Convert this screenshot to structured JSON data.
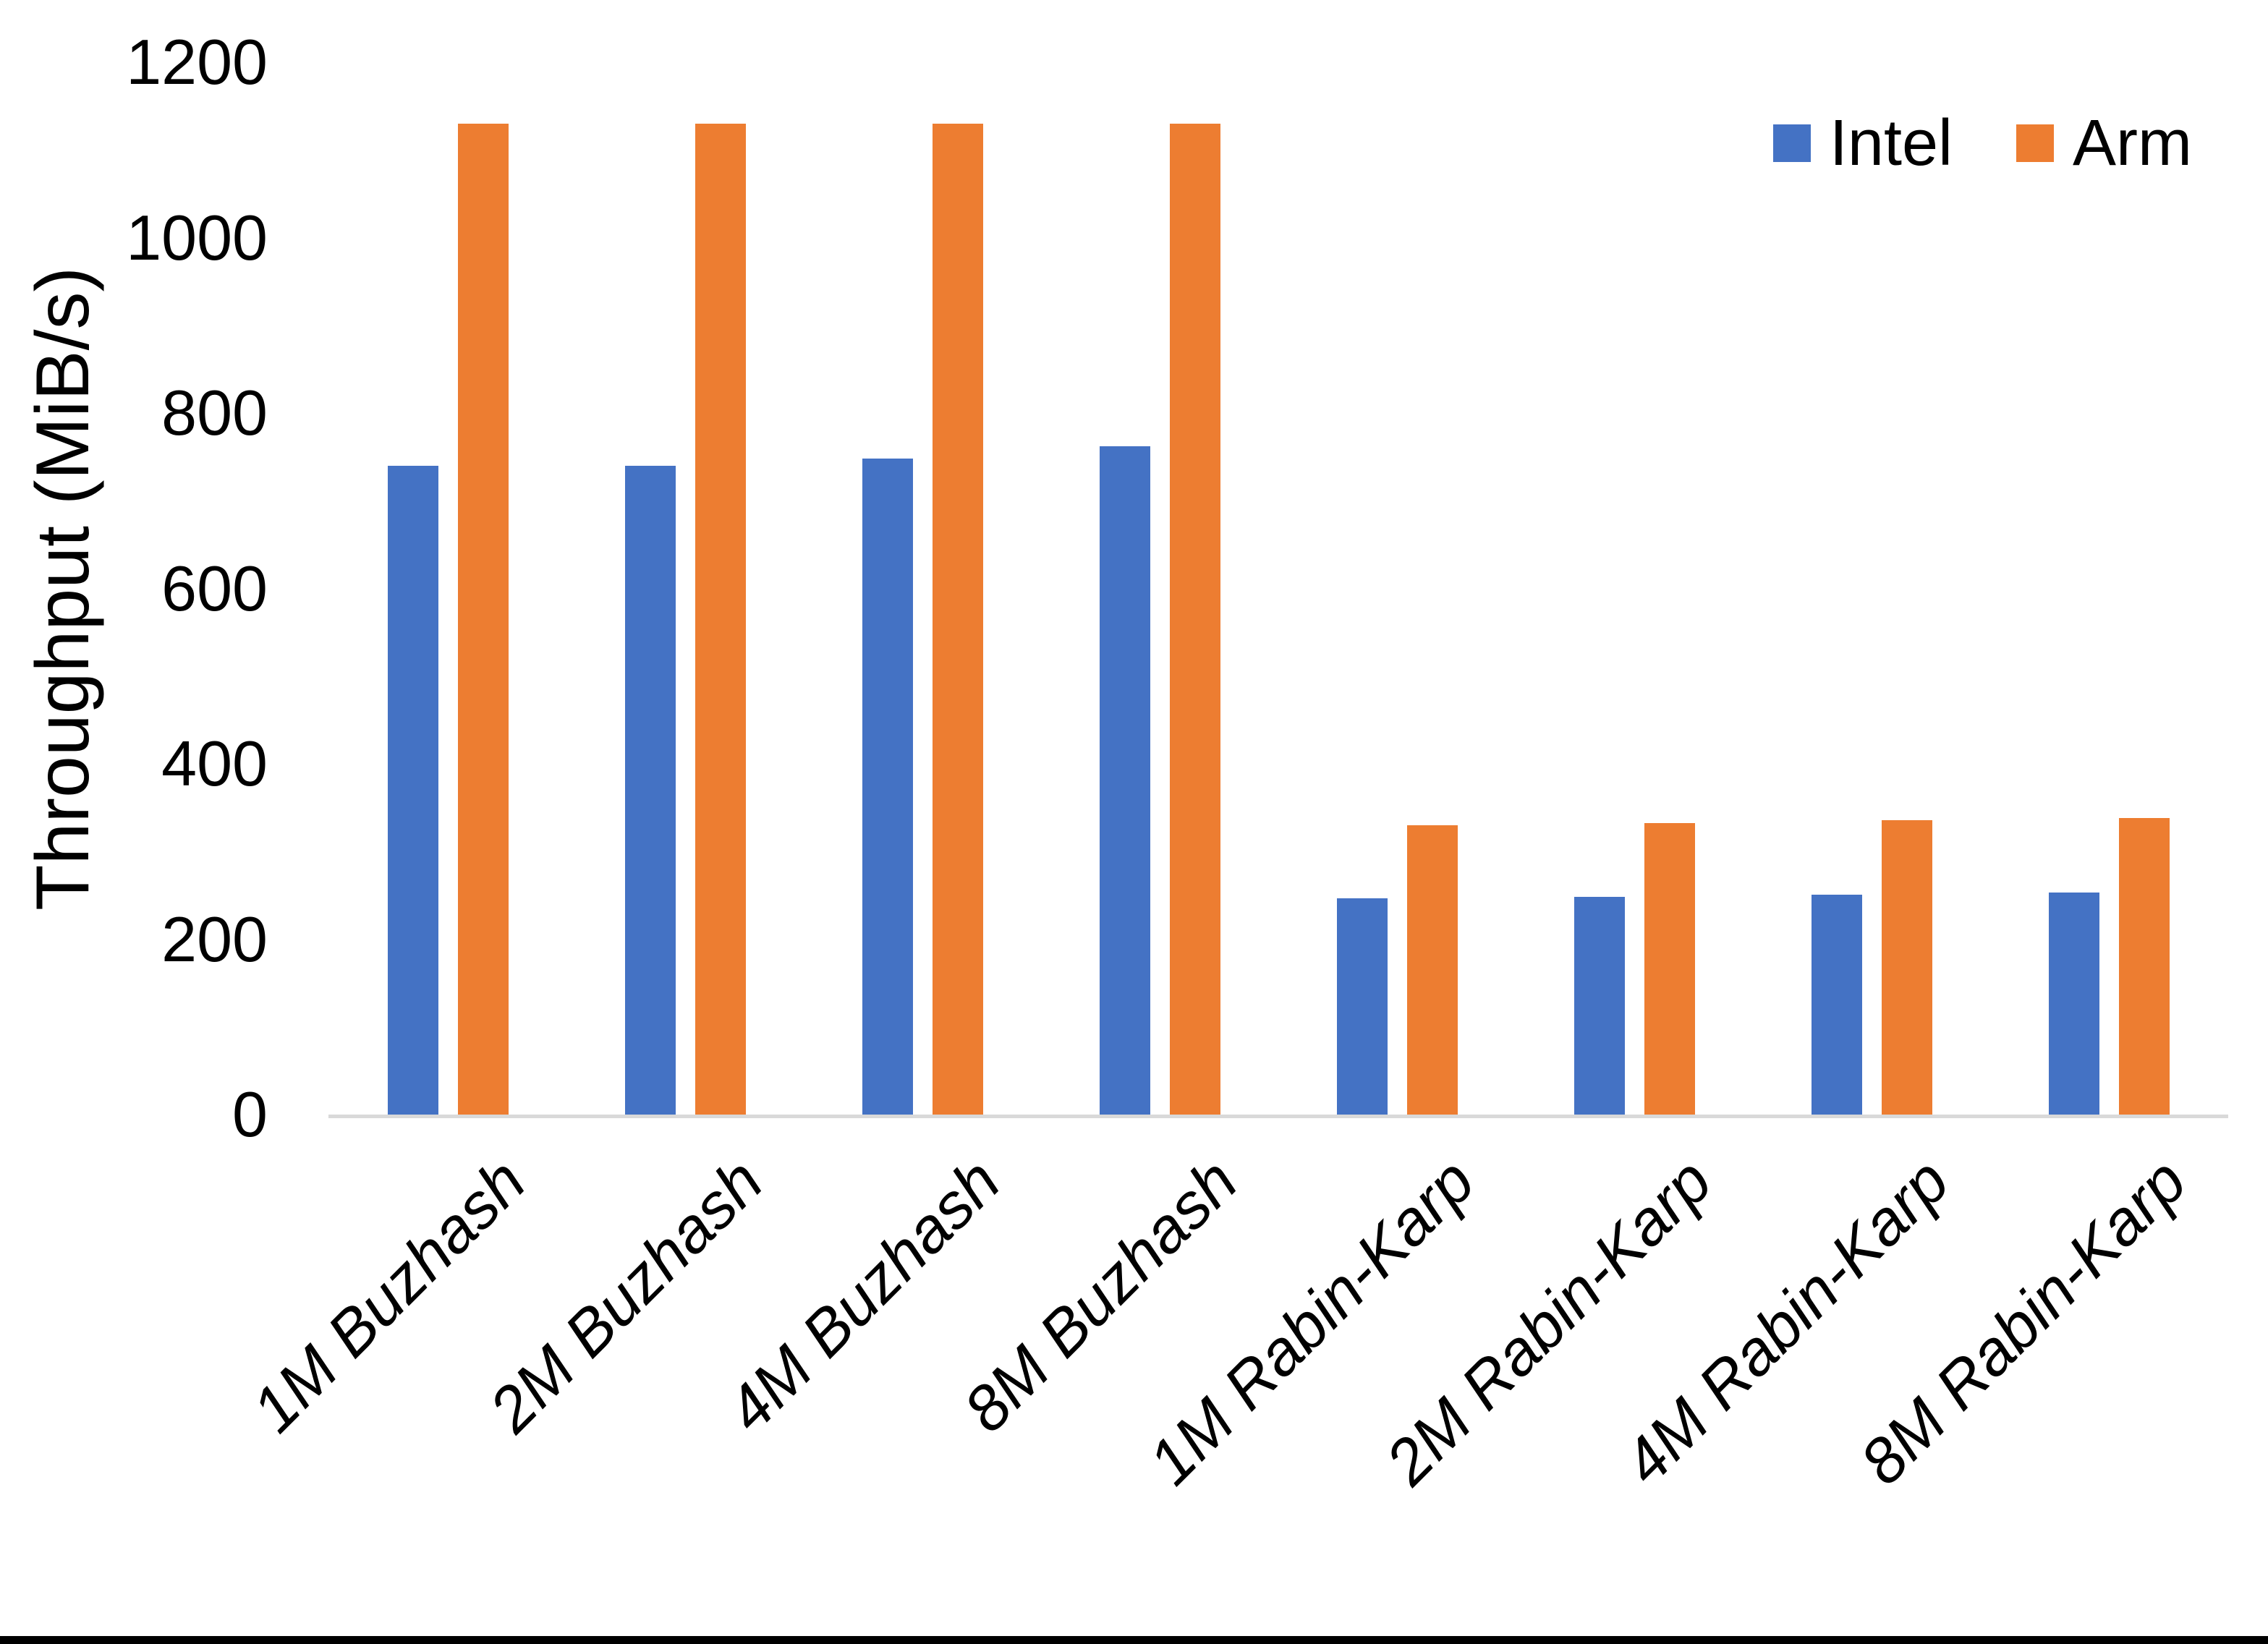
{
  "figure": {
    "background_color": "#ffffff",
    "bottom_border_color": "#000000",
    "axis_line_color": "#d9d9d9",
    "text_color": "#000000"
  },
  "legend": {
    "items": [
      {
        "label": "Intel",
        "color": "#4472C4"
      },
      {
        "label": "Arm",
        "color": "#ED7D31"
      }
    ]
  },
  "chart_data": {
    "type": "bar",
    "title": "",
    "xlabel": "",
    "ylabel": "Throughput (MiB/s)",
    "ylim": [
      0,
      1200
    ],
    "yticks": [
      0,
      200,
      400,
      600,
      800,
      1000,
      1200
    ],
    "grid": false,
    "legend_position": "top-right",
    "categories": [
      "1M Buzhash",
      "2M Buzhash",
      "4M Buzhash",
      "8M Buzhash",
      "1M Rabin-Karp",
      "2M Rabin-Karp",
      "4M Rabin-Karp",
      "8M Rabin-Karp"
    ],
    "series": [
      {
        "name": "Intel",
        "color": "#4472C4",
        "values": [
          740,
          740,
          748,
          762,
          247,
          248,
          251,
          253
        ]
      },
      {
        "name": "Arm",
        "color": "#ED7D31",
        "values": [
          1130,
          1130,
          1130,
          1130,
          330,
          332,
          336,
          338
        ]
      }
    ]
  }
}
